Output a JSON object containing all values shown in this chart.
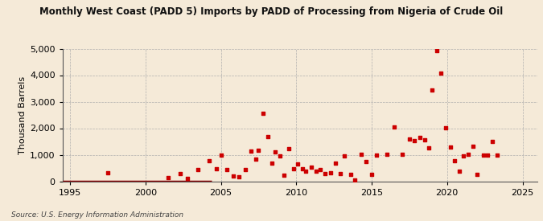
{
  "title": "Monthly West Coast (PADD 5) Imports by PADD of Processing from Nigeria of Crude Oil",
  "ylabel": "Thousand Barrels",
  "source": "Source: U.S. Energy Information Administration",
  "background_color": "#f5ead8",
  "marker_color": "#cc0000",
  "line_color": "#8b0000",
  "xlim": [
    1994.5,
    2026.0
  ],
  "ylim": [
    0,
    5000
  ],
  "yticks": [
    0,
    1000,
    2000,
    3000,
    4000,
    5000
  ],
  "xticks": [
    1995,
    2000,
    2005,
    2010,
    2015,
    2020,
    2025
  ],
  "scatter_data": [
    [
      1997.5,
      320
    ],
    [
      2001.5,
      140
    ],
    [
      2002.3,
      300
    ],
    [
      2002.8,
      110
    ],
    [
      2003.5,
      430
    ],
    [
      2004.2,
      760
    ],
    [
      2004.7,
      460
    ],
    [
      2005.0,
      1000
    ],
    [
      2005.4,
      450
    ],
    [
      2005.8,
      210
    ],
    [
      2006.2,
      170
    ],
    [
      2006.6,
      430
    ],
    [
      2007.0,
      1130
    ],
    [
      2007.3,
      840
    ],
    [
      2007.5,
      1170
    ],
    [
      2007.8,
      2570
    ],
    [
      2008.1,
      1670
    ],
    [
      2008.4,
      680
    ],
    [
      2008.6,
      1100
    ],
    [
      2008.9,
      960
    ],
    [
      2009.2,
      220
    ],
    [
      2009.5,
      1240
    ],
    [
      2009.8,
      460
    ],
    [
      2010.1,
      640
    ],
    [
      2010.4,
      480
    ],
    [
      2010.6,
      390
    ],
    [
      2011.0,
      540
    ],
    [
      2011.3,
      390
    ],
    [
      2011.6,
      430
    ],
    [
      2011.9,
      280
    ],
    [
      2012.3,
      330
    ],
    [
      2012.6,
      670
    ],
    [
      2012.9,
      300
    ],
    [
      2013.2,
      940
    ],
    [
      2013.6,
      270
    ],
    [
      2013.9,
      50
    ],
    [
      2014.3,
      1010
    ],
    [
      2014.6,
      750
    ],
    [
      2015.0,
      250
    ],
    [
      2015.3,
      990
    ],
    [
      2016.0,
      1020
    ],
    [
      2016.5,
      2060
    ],
    [
      2017.0,
      1030
    ],
    [
      2017.5,
      1580
    ],
    [
      2017.8,
      1540
    ],
    [
      2018.2,
      1650
    ],
    [
      2018.5,
      1560
    ],
    [
      2018.8,
      1260
    ],
    [
      2019.0,
      3440
    ],
    [
      2019.3,
      4920
    ],
    [
      2019.6,
      4070
    ],
    [
      2019.9,
      2020
    ],
    [
      2020.2,
      1290
    ],
    [
      2020.5,
      760
    ],
    [
      2020.8,
      370
    ],
    [
      2021.1,
      940
    ],
    [
      2021.4,
      1020
    ],
    [
      2021.7,
      1310
    ],
    [
      2022.0,
      260
    ],
    [
      2022.4,
      990
    ],
    [
      2022.7,
      980
    ],
    [
      2023.0,
      1490
    ],
    [
      2023.3,
      970
    ]
  ],
  "line_data_x": [
    1994.5,
    2004.4
  ],
  "line_data_y": [
    0,
    0
  ]
}
